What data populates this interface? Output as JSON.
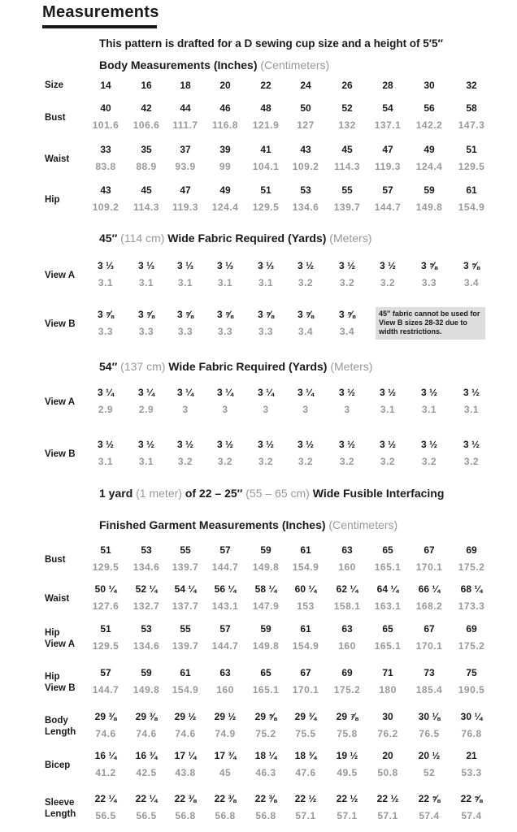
{
  "title": "Measurements",
  "intro": "This pattern is drafted for a D sewing cup size and a height of 5′5″",
  "body": {
    "heading": "Body Measurements (Inches)",
    "heading_alt": "(Centimeters)",
    "size_label": "Size",
    "sizes": [
      "14",
      "16",
      "18",
      "20",
      "22",
      "24",
      "26",
      "28",
      "30",
      "32"
    ],
    "rows": [
      {
        "label": "Bust",
        "in": [
          "40",
          "42",
          "44",
          "46",
          "48",
          "50",
          "52",
          "54",
          "56",
          "58"
        ],
        "cm": [
          "101.6",
          "106.6",
          "111.7",
          "116.8",
          "121.9",
          "127",
          "132",
          "137.1",
          "142.2",
          "147.3"
        ]
      },
      {
        "label": "Waist",
        "in": [
          "33",
          "35",
          "37",
          "39",
          "41",
          "43",
          "45",
          "47",
          "49",
          "51"
        ],
        "cm": [
          "83.8",
          "88.9",
          "93.9",
          "99",
          "104.1",
          "109.2",
          "114.3",
          "119.3",
          "124.4",
          "129.5"
        ]
      },
      {
        "label": "Hip",
        "in": [
          "43",
          "45",
          "47",
          "49",
          "51",
          "53",
          "55",
          "57",
          "59",
          "61"
        ],
        "cm": [
          "109.2",
          "114.3",
          "119.3",
          "124.4",
          "129.5",
          "134.6",
          "139.7",
          "144.7",
          "149.8",
          "154.9"
        ]
      }
    ]
  },
  "fabric45": {
    "heading_a": "45″",
    "heading_b": "(114 cm)",
    "heading_c": "Wide Fabric Required (Yards)",
    "heading_d": "(Meters)",
    "rows": [
      {
        "label": "View A",
        "in": [
          "3 ⅓",
          "3 ⅓",
          "3 ⅓",
          "3 ⅓",
          "3 ⅓",
          "3 ½",
          "3 ½",
          "3 ½",
          "3 ⅝",
          "3 ⅝"
        ],
        "cm": [
          "3.1",
          "3.1",
          "3.1",
          "3.1",
          "3.1",
          "3.2",
          "3.2",
          "3.2",
          "3.3",
          "3.4"
        ]
      },
      {
        "label": "View B",
        "in": [
          "3 ⅝",
          "3 ⅝",
          "3 ⅝",
          "3 ⅝",
          "3 ⅝",
          "3 ⅝",
          "3 ⅝"
        ],
        "cm": [
          "3.3",
          "3.3",
          "3.3",
          "3.3",
          "3.3",
          "3.4",
          "3.4"
        ]
      }
    ],
    "note": "45″ fabric cannot be used for View B sizes 28-32 due to width restrictions."
  },
  "fabric54": {
    "heading_a": "54″",
    "heading_b": "(137 cm)",
    "heading_c": "Wide Fabric Required (Yards)",
    "heading_d": "(Meters)",
    "rows": [
      {
        "label": "View A",
        "in": [
          "3 ¼",
          "3 ¼",
          "3 ¼",
          "3 ¼",
          "3 ¼",
          "3 ¼",
          "3 ½",
          "3 ½",
          "3 ½",
          "3 ½"
        ],
        "cm": [
          "2.9",
          "2.9",
          "3",
          "3",
          "3",
          "3",
          "3",
          "3.1",
          "3.1",
          "3.1"
        ]
      },
      {
        "label": "View B",
        "in": [
          "3 ½",
          "3 ½",
          "3 ½",
          "3 ½",
          "3 ½",
          "3 ½",
          "3 ½",
          "3 ½",
          "3 ½",
          "3 ½"
        ],
        "cm": [
          "3.1",
          "3.1",
          "3.2",
          "3.2",
          "3.2",
          "3.2",
          "3.2",
          "3.2",
          "3.2",
          "3.2"
        ]
      }
    ]
  },
  "interfacing": {
    "a": "1 yard",
    "b": "(1 meter)",
    "c": "of 22 – 25″",
    "d": "(55 – 65 cm)",
    "e": "Wide Fusible Interfacing"
  },
  "finished": {
    "heading": "Finished Garment Measurements (Inches)",
    "heading_alt": "(Centimeters)",
    "rows": [
      {
        "label": "Bust",
        "in": [
          "51",
          "53",
          "55",
          "57",
          "59",
          "61",
          "63",
          "65",
          "67",
          "69"
        ],
        "cm": [
          "129.5",
          "134.6",
          "139.7",
          "144.7",
          "149.8",
          "154.9",
          "160",
          "165.1",
          "170.1",
          "175.2"
        ]
      },
      {
        "label": "Waist",
        "in": [
          "50 ¼",
          "52 ¼",
          "54 ¼",
          "56 ¼",
          "58 ¼",
          "60 ¼",
          "62 ¼",
          "64 ¼",
          "66 ¼",
          "68 ¼"
        ],
        "cm": [
          "127.6",
          "132.7",
          "137.7",
          "143.1",
          "147.9",
          "153",
          "158.1",
          "163.1",
          "168.2",
          "173.3"
        ]
      },
      {
        "label": "Hip",
        "label2": "View A",
        "in": [
          "51",
          "53",
          "55",
          "57",
          "59",
          "61",
          "63",
          "65",
          "67",
          "69"
        ],
        "cm": [
          "129.5",
          "134.6",
          "139.7",
          "144.7",
          "149.8",
          "154.9",
          "160",
          "165.1",
          "170.1",
          "175.2"
        ]
      },
      {
        "label": "Hip",
        "label2": "View B",
        "in": [
          "57",
          "59",
          "61",
          "63",
          "65",
          "67",
          "69",
          "71",
          "73",
          "75"
        ],
        "cm": [
          "144.7",
          "149.8",
          "154.9",
          "160",
          "165.1",
          "170.1",
          "175.2",
          "180",
          "185.4",
          "190.5"
        ]
      },
      {
        "label": "Body",
        "label2": "Length",
        "in": [
          "29 ⅜",
          "29 ⅜",
          "29 ½",
          "29 ½",
          "29 ⅝",
          "29 ¾",
          "29 ⅞",
          "30",
          "30 ⅛",
          "30 ¼"
        ],
        "cm": [
          "74.6",
          "74.6",
          "74.6",
          "74.9",
          "75.2",
          "75.5",
          "75.8",
          "76.2",
          "76.5",
          "76.8"
        ]
      },
      {
        "label": "Bicep",
        "in": [
          "16 ¼",
          "16 ¾",
          "17 ¼",
          "17 ¾",
          "18 ¼",
          "18 ¾",
          "19 ½",
          "20",
          "20 ½",
          "21"
        ],
        "cm": [
          "41.2",
          "42.5",
          "43.8",
          "45",
          "46.3",
          "47.6",
          "49.5",
          "50.8",
          "52",
          "53.3"
        ]
      },
      {
        "label": "Sleeve",
        "label2": "Length",
        "in": [
          "22 ¼",
          "22 ¼",
          "22 ⅜",
          "22 ⅜",
          "22 ⅜",
          "22 ½",
          "22 ½",
          "22 ½",
          "22 ⅝",
          "22 ⅝"
        ],
        "cm": [
          "56.5",
          "56.5",
          "56.8",
          "56.8",
          "56.8",
          "57.1",
          "57.1",
          "57.1",
          "57.4",
          "57.4"
        ]
      }
    ]
  }
}
